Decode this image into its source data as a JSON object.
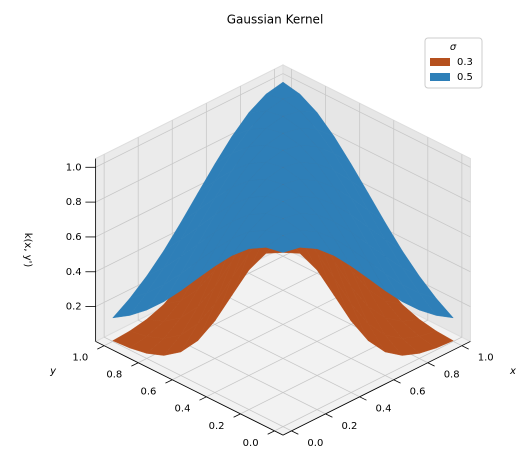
{
  "chart_data": {
    "type": "surface3d",
    "title": "Gaussian Kernel",
    "xlabel": "x",
    "ylabel": "y",
    "zlabel": "k(x, y')",
    "x": [
      0,
      0.1,
      0.2,
      0.3,
      0.4,
      0.5,
      0.6,
      0.7,
      0.8,
      0.9,
      1
    ],
    "y": [
      0,
      0.1,
      0.2,
      0.3,
      0.4,
      0.5,
      0.6,
      0.7,
      0.8,
      0.9,
      1
    ],
    "xlim": [
      -0.05,
      1.05
    ],
    "ylim": [
      -0.05,
      1.05
    ],
    "zlim": [
      0,
      1.05
    ],
    "xticks": [
      {
        "value": 0,
        "label": "0.0"
      },
      0.2,
      0.4,
      0.6,
      0.8,
      {
        "value": 1,
        "label": "1.0"
      }
    ],
    "yticks": [
      {
        "value": 0,
        "label": "0.0"
      },
      0.2,
      0.4,
      0.6,
      0.8,
      {
        "value": 1,
        "label": "1.0"
      }
    ],
    "zticks": [
      0.2,
      0.4,
      0.6,
      0.8,
      {
        "value": 1,
        "label": "1.0"
      }
    ],
    "grid": true,
    "legend_title": "σ",
    "legend_loc": "upper right",
    "series": [
      {
        "name": "0.3",
        "color": "#b5501e",
        "z": [
          [
            1,
            0.946,
            0.801,
            0.607,
            0.411,
            0.249,
            0.135,
            0.066,
            0.029,
            0.011,
            0.004
          ],
          [
            0.946,
            1,
            0.946,
            0.801,
            0.607,
            0.411,
            0.249,
            0.135,
            0.066,
            0.029,
            0.011
          ],
          [
            0.801,
            0.946,
            1,
            0.946,
            0.801,
            0.607,
            0.411,
            0.249,
            0.135,
            0.066,
            0.029
          ],
          [
            0.607,
            0.801,
            0.946,
            1,
            0.946,
            0.801,
            0.607,
            0.411,
            0.249,
            0.135,
            0.066
          ],
          [
            0.411,
            0.607,
            0.801,
            0.946,
            1,
            0.946,
            0.801,
            0.607,
            0.411,
            0.249,
            0.135
          ],
          [
            0.249,
            0.411,
            0.607,
            0.801,
            0.946,
            1,
            0.946,
            0.801,
            0.607,
            0.411,
            0.249
          ],
          [
            0.135,
            0.249,
            0.411,
            0.607,
            0.801,
            0.946,
            1,
            0.946,
            0.801,
            0.607,
            0.411
          ],
          [
            0.066,
            0.135,
            0.249,
            0.411,
            0.607,
            0.801,
            0.946,
            1,
            0.946,
            0.801,
            0.607
          ],
          [
            0.029,
            0.066,
            0.135,
            0.249,
            0.411,
            0.607,
            0.801,
            0.946,
            1,
            0.946,
            0.801
          ],
          [
            0.011,
            0.029,
            0.066,
            0.135,
            0.249,
            0.411,
            0.607,
            0.801,
            0.946,
            1,
            0.946
          ],
          [
            0.004,
            0.011,
            0.029,
            0.066,
            0.135,
            0.249,
            0.411,
            0.607,
            0.801,
            0.946,
            1
          ]
        ]
      },
      {
        "name": "0.5",
        "color": "#2e7fb8",
        "z": [
          [
            1,
            0.98,
            0.923,
            0.835,
            0.726,
            0.607,
            0.487,
            0.375,
            0.278,
            0.198,
            0.135
          ],
          [
            0.98,
            1,
            0.98,
            0.923,
            0.835,
            0.726,
            0.607,
            0.487,
            0.375,
            0.278,
            0.198
          ],
          [
            0.923,
            0.98,
            1,
            0.98,
            0.923,
            0.835,
            0.726,
            0.607,
            0.487,
            0.375,
            0.278
          ],
          [
            0.835,
            0.923,
            0.98,
            1,
            0.98,
            0.923,
            0.835,
            0.726,
            0.607,
            0.487,
            0.375
          ],
          [
            0.726,
            0.835,
            0.923,
            0.98,
            1,
            0.98,
            0.923,
            0.835,
            0.726,
            0.607,
            0.487
          ],
          [
            0.607,
            0.726,
            0.835,
            0.923,
            0.98,
            1,
            0.98,
            0.923,
            0.835,
            0.726,
            0.607
          ],
          [
            0.487,
            0.607,
            0.726,
            0.835,
            0.923,
            0.98,
            1,
            0.98,
            0.923,
            0.835,
            0.726
          ],
          [
            0.375,
            0.487,
            0.607,
            0.726,
            0.835,
            0.923,
            0.98,
            1,
            0.98,
            0.923,
            0.835
          ],
          [
            0.278,
            0.375,
            0.487,
            0.607,
            0.726,
            0.835,
            0.923,
            0.98,
            1,
            0.98,
            0.923
          ],
          [
            0.198,
            0.278,
            0.375,
            0.487,
            0.607,
            0.726,
            0.835,
            0.923,
            0.98,
            1,
            0.98
          ],
          [
            0.135,
            0.198,
            0.278,
            0.375,
            0.487,
            0.607,
            0.726,
            0.835,
            0.923,
            0.98,
            1
          ]
        ]
      }
    ]
  }
}
